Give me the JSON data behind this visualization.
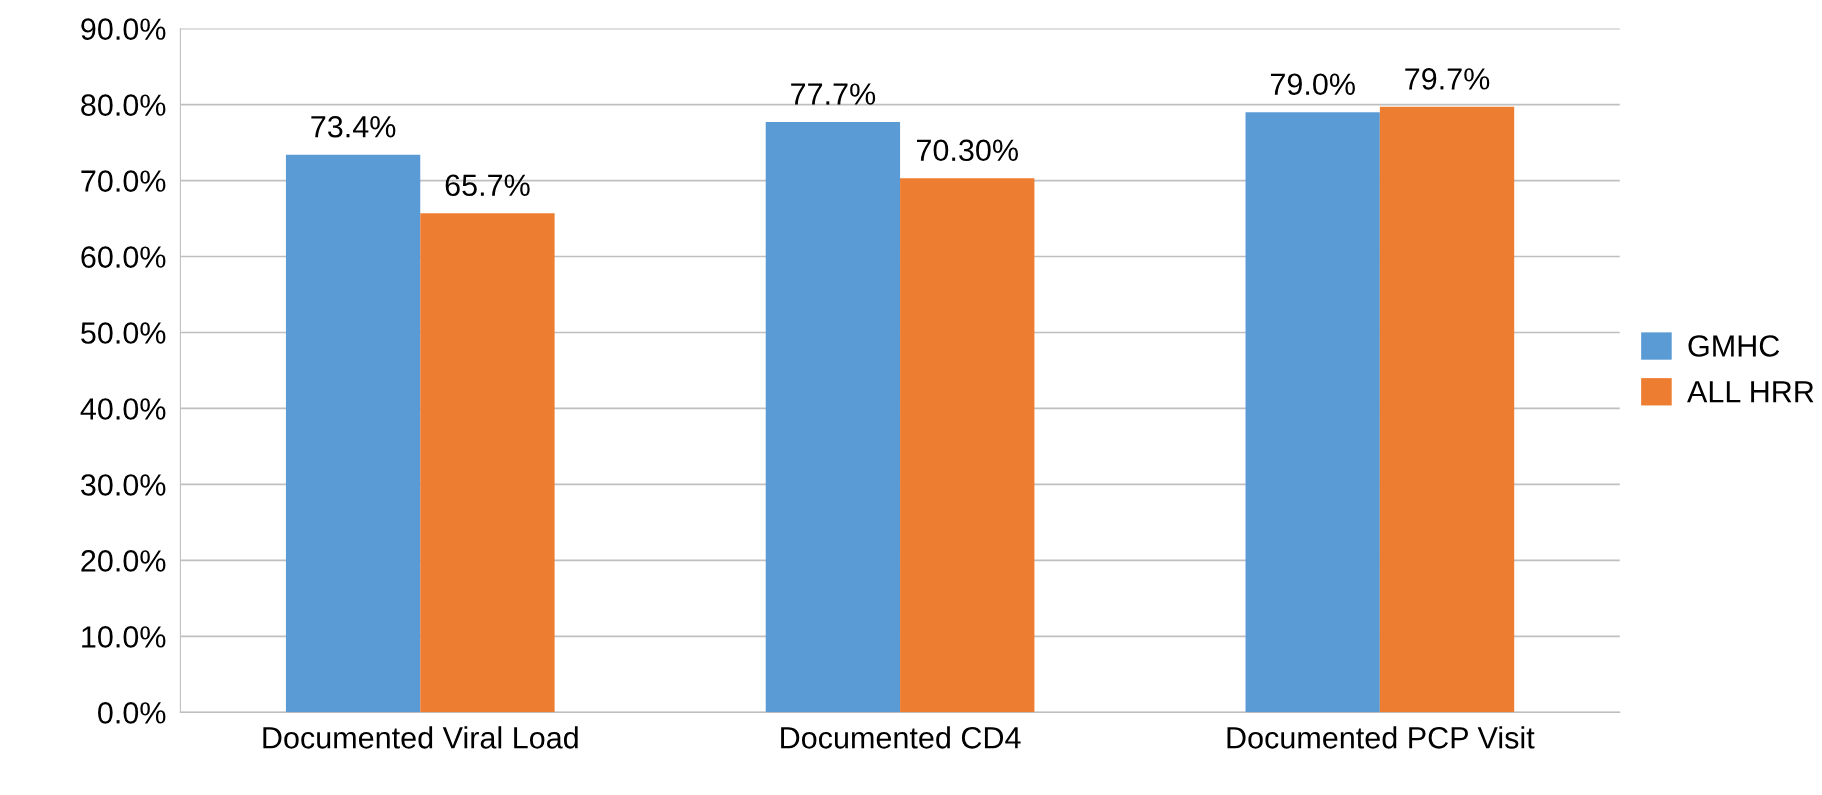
{
  "chart_data": {
    "type": "bar",
    "categories": [
      "Documented Viral Load",
      "Documented CD4",
      "Documented PCP Visit"
    ],
    "series": [
      {
        "name": "GMHC",
        "color": "#5b9bd5",
        "values": [
          73.4,
          77.7,
          79.0
        ],
        "value_labels": [
          "73.4%",
          "77.7%",
          "79.0%"
        ]
      },
      {
        "name": "ALL HRR",
        "color": "#ed7d31",
        "values": [
          65.7,
          70.3,
          79.7
        ],
        "value_labels": [
          "65.7%",
          "70.30%",
          "79.7%"
        ]
      }
    ],
    "ylim": [
      0,
      90
    ],
    "yticks": [
      {
        "value": 0,
        "label": "0.0%"
      },
      {
        "value": 10,
        "label": "10.0%"
      },
      {
        "value": 20,
        "label": "20.0%"
      },
      {
        "value": 30,
        "label": "30.0%"
      },
      {
        "value": 40,
        "label": "40.0%"
      },
      {
        "value": 50,
        "label": "50.0%"
      },
      {
        "value": 60,
        "label": "60.0%"
      },
      {
        "value": 70,
        "label": "70.0%"
      },
      {
        "value": 80,
        "label": "80.0%"
      },
      {
        "value": 90,
        "label": "90.0%"
      }
    ],
    "grid": "y",
    "legend": "right"
  }
}
